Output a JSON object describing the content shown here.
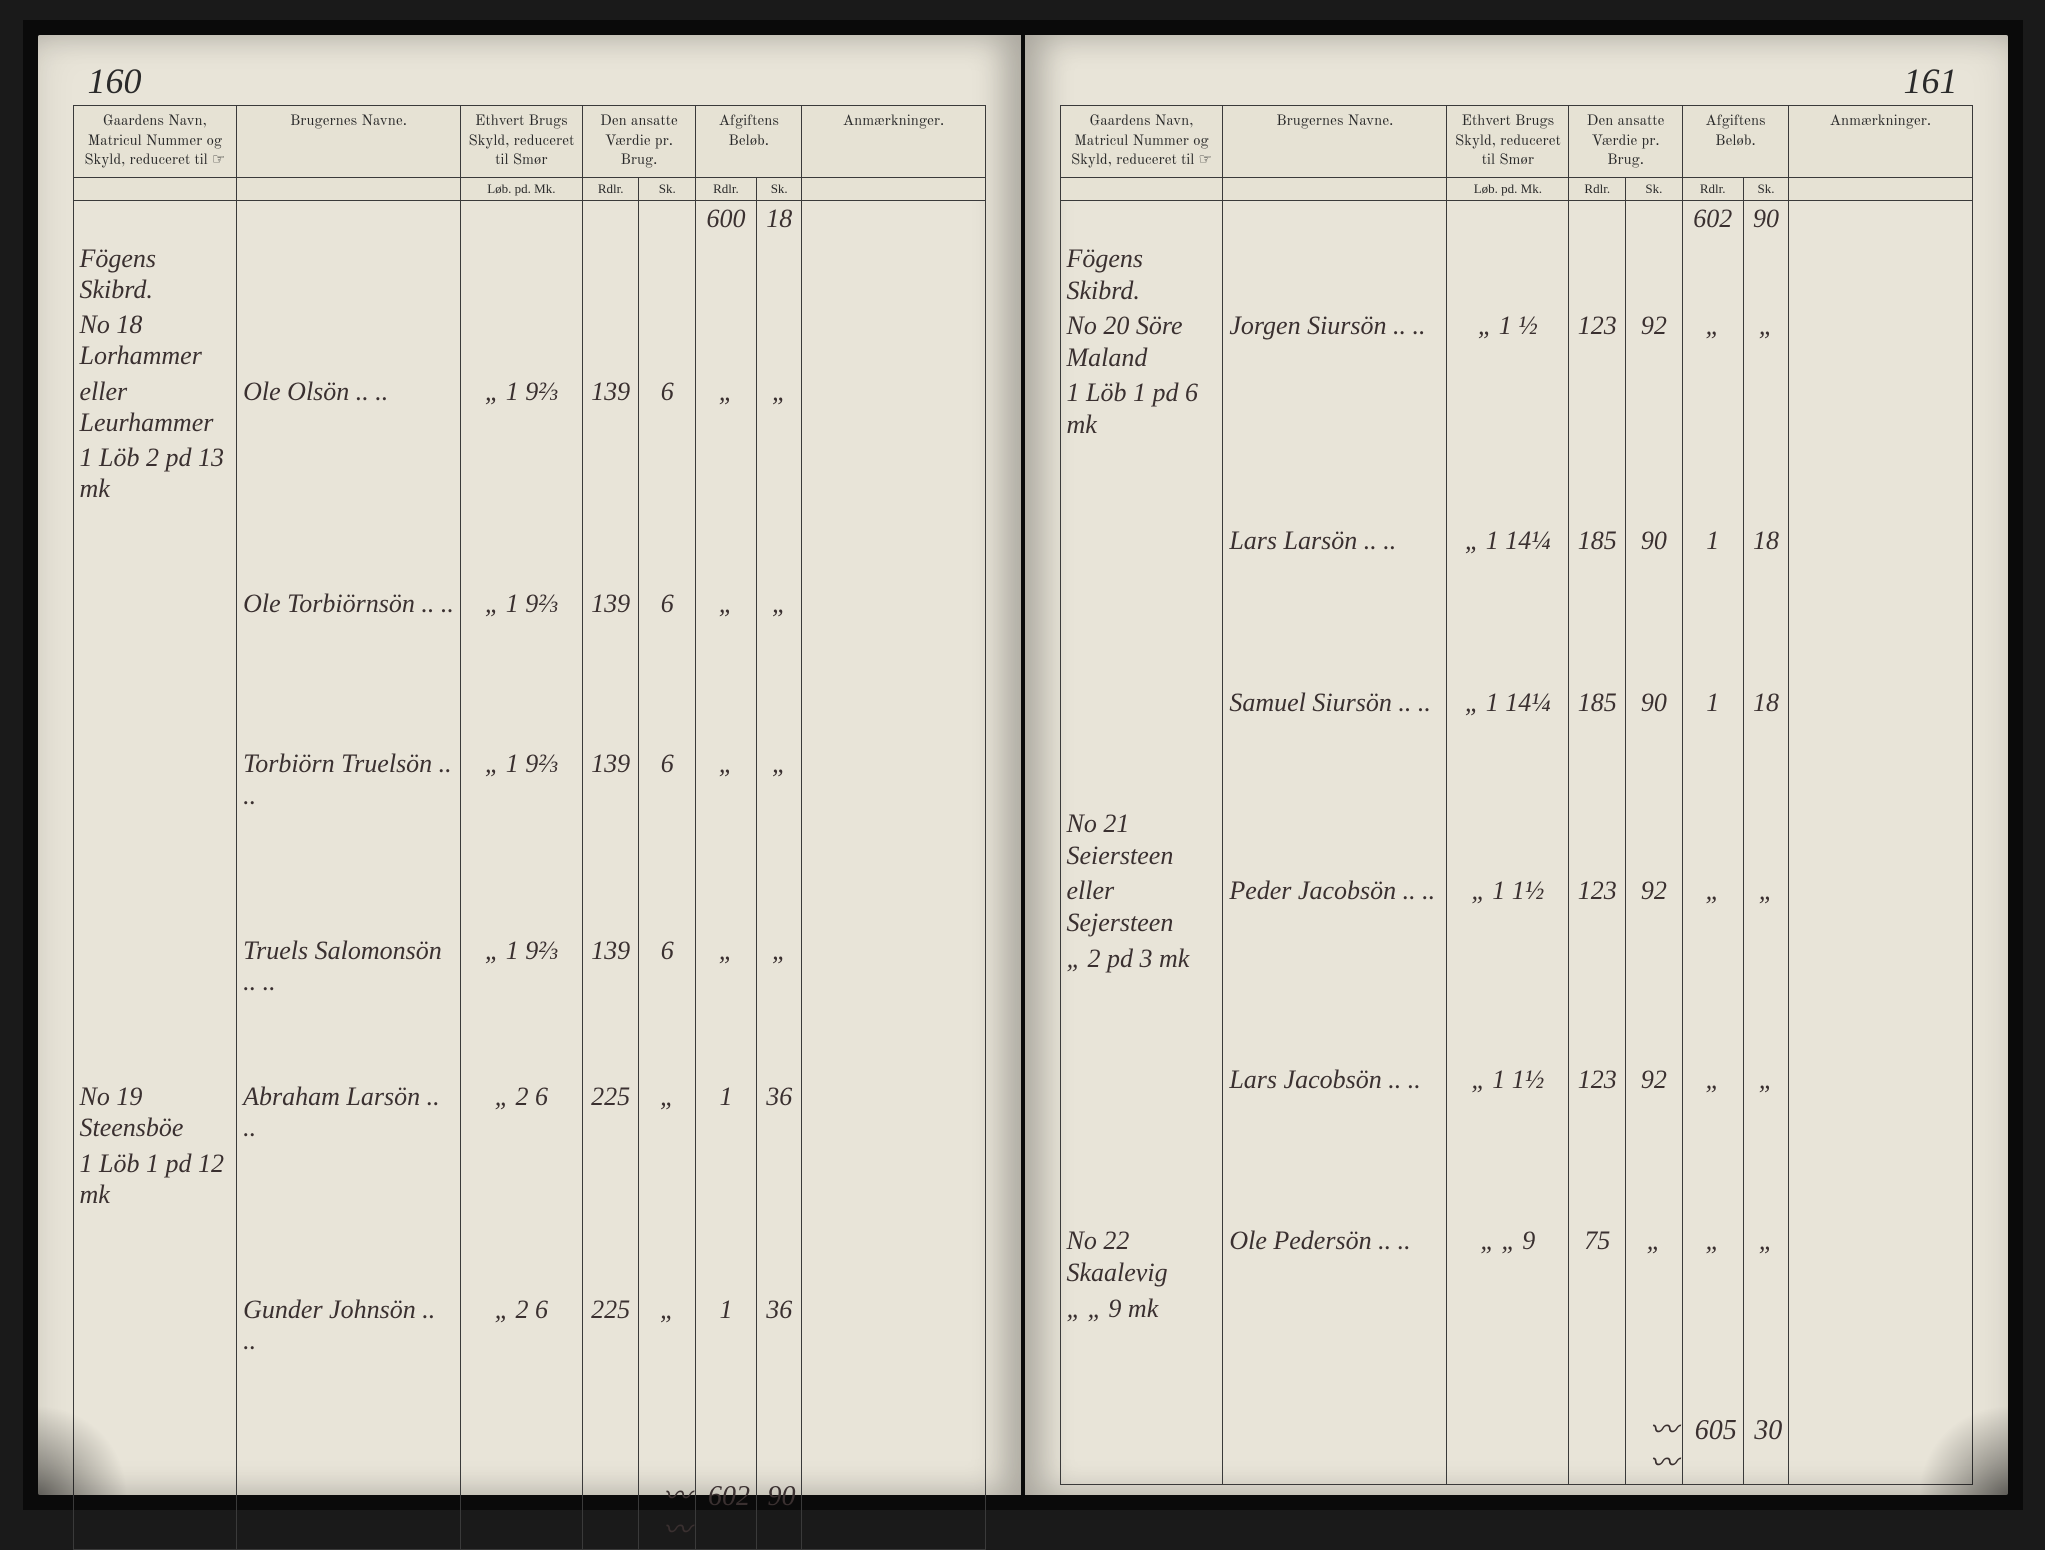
{
  "leftPage": {
    "pageNum": "160",
    "headers": {
      "gaard": "Gaardens Navn,\nMatricul Nummer og\nSkyld, reduceret til ☞",
      "bruger": "Brugernes Navne.",
      "skyld": "Ethvert Brugs\nSkyld, reduceret\ntil Smør",
      "vaerdie": "Den ansatte\nVærdie\npr. Brug.",
      "afgift": "Afgiftens\nBeløb.",
      "anm": "Anmærkninger."
    },
    "subheaders": {
      "skyld": "Løb. pd. Mk.",
      "rdlr": "Rdlr.",
      "sk": "Sk.",
      "rdlr2": "Rdlr.",
      "sk2": "Sk."
    },
    "carryForward": {
      "label": "",
      "amt1": "600",
      "amt2": "18"
    },
    "rows": [
      {
        "gaard": "Fögens Skibrd.",
        "bruger": "",
        "skyld": "",
        "v1": "",
        "v2": "",
        "a1": "",
        "a2": ""
      },
      {
        "gaard": "No 18 Lorhammer",
        "bruger": "",
        "skyld": "",
        "v1": "",
        "v2": "",
        "a1": "",
        "a2": ""
      },
      {
        "gaard": "eller Leurhammer",
        "bruger": "Ole Olsön",
        "skyld": "„  1  9⅔",
        "v1": "139",
        "v2": "6",
        "a1": "„",
        "a2": "„"
      },
      {
        "gaard": "1 Löb 2 pd 13 mk",
        "bruger": "",
        "skyld": "",
        "v1": "",
        "v2": "",
        "a1": "",
        "a2": ""
      },
      {
        "gaard": "",
        "bruger": "",
        "skyld": "",
        "v1": "",
        "v2": "",
        "a1": "",
        "a2": ""
      },
      {
        "gaard": "",
        "bruger": "",
        "skyld": "",
        "v1": "",
        "v2": "",
        "a1": "",
        "a2": ""
      },
      {
        "gaard": "",
        "bruger": "Ole Torbiörnsön",
        "skyld": "„  1  9⅔",
        "v1": "139",
        "v2": "6",
        "a1": "„",
        "a2": "„"
      },
      {
        "gaard": "",
        "bruger": "",
        "skyld": "",
        "v1": "",
        "v2": "",
        "a1": "",
        "a2": ""
      },
      {
        "gaard": "",
        "bruger": "",
        "skyld": "",
        "v1": "",
        "v2": "",
        "a1": "",
        "a2": ""
      },
      {
        "gaard": "",
        "bruger": "",
        "skyld": "",
        "v1": "",
        "v2": "",
        "a1": "",
        "a2": ""
      },
      {
        "gaard": "",
        "bruger": "Torbiörn Truelsön",
        "skyld": "„  1  9⅔",
        "v1": "139",
        "v2": "6",
        "a1": "„",
        "a2": "„"
      },
      {
        "gaard": "",
        "bruger": "",
        "skyld": "",
        "v1": "",
        "v2": "",
        "a1": "",
        "a2": ""
      },
      {
        "gaard": "",
        "bruger": "",
        "skyld": "",
        "v1": "",
        "v2": "",
        "a1": "",
        "a2": ""
      },
      {
        "gaard": "",
        "bruger": "",
        "skyld": "",
        "v1": "",
        "v2": "",
        "a1": "",
        "a2": ""
      },
      {
        "gaard": "",
        "bruger": "Truels Salomonsön",
        "skyld": "„  1  9⅔",
        "v1": "139",
        "v2": "6",
        "a1": "„",
        "a2": "„"
      },
      {
        "gaard": "",
        "bruger": "",
        "skyld": "",
        "v1": "",
        "v2": "",
        "a1": "",
        "a2": ""
      },
      {
        "gaard": "",
        "bruger": "",
        "skyld": "",
        "v1": "",
        "v2": "",
        "a1": "",
        "a2": ""
      },
      {
        "gaard": "No 19 Steensböe",
        "bruger": "Abraham Larsön",
        "skyld": "„  2  6",
        "v1": "225",
        "v2": "„",
        "a1": "1",
        "a2": "36"
      },
      {
        "gaard": "1 Löb 1 pd 12 mk",
        "bruger": "",
        "skyld": "",
        "v1": "",
        "v2": "",
        "a1": "",
        "a2": ""
      },
      {
        "gaard": "",
        "bruger": "",
        "skyld": "",
        "v1": "",
        "v2": "",
        "a1": "",
        "a2": ""
      },
      {
        "gaard": "",
        "bruger": "",
        "skyld": "",
        "v1": "",
        "v2": "",
        "a1": "",
        "a2": ""
      },
      {
        "gaard": "",
        "bruger": "Gunder Johnsön",
        "skyld": "„  2  6",
        "v1": "225",
        "v2": "„",
        "a1": "1",
        "a2": "36"
      },
      {
        "gaard": "",
        "bruger": "",
        "skyld": "",
        "v1": "",
        "v2": "",
        "a1": "",
        "a2": ""
      },
      {
        "gaard": "",
        "bruger": "",
        "skyld": "",
        "v1": "",
        "v2": "",
        "a1": "",
        "a2": ""
      },
      {
        "gaard": "",
        "bruger": "",
        "skyld": "",
        "v1": "",
        "v2": "",
        "a1": "",
        "a2": ""
      }
    ],
    "total": {
      "flourish": "〰〰",
      "amt1": "602",
      "amt2": "90"
    }
  },
  "rightPage": {
    "pageNum": "161",
    "headers": {
      "gaard": "Gaardens Navn,\nMatricul Nummer og\nSkyld, reduceret til ☞",
      "bruger": "Brugernes Navne.",
      "skyld": "Ethvert Brugs\nSkyld, reduceret\ntil Smør",
      "vaerdie": "Den ansatte\nVærdie\npr. Brug.",
      "afgift": "Afgiftens\nBeløb.",
      "anm": "Anmærkninger."
    },
    "subheaders": {
      "skyld": "Løb. pd. Mk.",
      "rdlr": "Rdlr.",
      "sk": "Sk.",
      "rdlr2": "Rdlr.",
      "sk2": "Sk."
    },
    "carryForward": {
      "label": "",
      "amt1": "602",
      "amt2": "90"
    },
    "rows": [
      {
        "gaard": "Fögens Skibrd.",
        "bruger": "",
        "skyld": "",
        "v1": "",
        "v2": "",
        "a1": "",
        "a2": ""
      },
      {
        "gaard": "No 20 Söre Maland",
        "bruger": "Jorgen Siursön",
        "skyld": "„  1  ½",
        "v1": "123",
        "v2": "92",
        "a1": "„",
        "a2": "„"
      },
      {
        "gaard": "1 Löb 1 pd 6 mk",
        "bruger": "",
        "skyld": "",
        "v1": "",
        "v2": "",
        "a1": "",
        "a2": ""
      },
      {
        "gaard": "",
        "bruger": "",
        "skyld": "",
        "v1": "",
        "v2": "",
        "a1": "",
        "a2": ""
      },
      {
        "gaard": "",
        "bruger": "",
        "skyld": "",
        "v1": "",
        "v2": "",
        "a1": "",
        "a2": ""
      },
      {
        "gaard": "",
        "bruger": "Lars Larsön",
        "skyld": "„  1  14¼",
        "v1": "185",
        "v2": "90",
        "a1": "1",
        "a2": "18"
      },
      {
        "gaard": "",
        "bruger": "",
        "skyld": "",
        "v1": "",
        "v2": "",
        "a1": "",
        "a2": ""
      },
      {
        "gaard": "",
        "bruger": "",
        "skyld": "",
        "v1": "",
        "v2": "",
        "a1": "",
        "a2": ""
      },
      {
        "gaard": "",
        "bruger": "",
        "skyld": "",
        "v1": "",
        "v2": "",
        "a1": "",
        "a2": ""
      },
      {
        "gaard": "",
        "bruger": "Samuel Siursön",
        "skyld": "„  1  14¼",
        "v1": "185",
        "v2": "90",
        "a1": "1",
        "a2": "18"
      },
      {
        "gaard": "",
        "bruger": "",
        "skyld": "",
        "v1": "",
        "v2": "",
        "a1": "",
        "a2": ""
      },
      {
        "gaard": "",
        "bruger": "",
        "skyld": "",
        "v1": "",
        "v2": "",
        "a1": "",
        "a2": ""
      },
      {
        "gaard": "No 21 Seiersteen",
        "bruger": "",
        "skyld": "",
        "v1": "",
        "v2": "",
        "a1": "",
        "a2": ""
      },
      {
        "gaard": "eller Sejersteen",
        "bruger": "Peder Jacobsön",
        "skyld": "„  1  1½",
        "v1": "123",
        "v2": "92",
        "a1": "„",
        "a2": "„"
      },
      {
        "gaard": "„  2 pd  3 mk",
        "bruger": "",
        "skyld": "",
        "v1": "",
        "v2": "",
        "a1": "",
        "a2": ""
      },
      {
        "gaard": "",
        "bruger": "",
        "skyld": "",
        "v1": "",
        "v2": "",
        "a1": "",
        "a2": ""
      },
      {
        "gaard": "",
        "bruger": "",
        "skyld": "",
        "v1": "",
        "v2": "",
        "a1": "",
        "a2": ""
      },
      {
        "gaard": "",
        "bruger": "Lars Jacobsön",
        "skyld": "„  1  1½",
        "v1": "123",
        "v2": "92",
        "a1": "„",
        "a2": "„"
      },
      {
        "gaard": "",
        "bruger": "",
        "skyld": "",
        "v1": "",
        "v2": "",
        "a1": "",
        "a2": ""
      },
      {
        "gaard": "",
        "bruger": "",
        "skyld": "",
        "v1": "",
        "v2": "",
        "a1": "",
        "a2": ""
      },
      {
        "gaard": "",
        "bruger": "",
        "skyld": "",
        "v1": "",
        "v2": "",
        "a1": "",
        "a2": ""
      },
      {
        "gaard": "No 22 Skaalevig",
        "bruger": "Ole Pedersön",
        "skyld": "„  „  9",
        "v1": "75",
        "v2": "„",
        "a1": "„",
        "a2": "„"
      },
      {
        "gaard": "„  „  9 mk",
        "bruger": "",
        "skyld": "",
        "v1": "",
        "v2": "",
        "a1": "",
        "a2": ""
      },
      {
        "gaard": "",
        "bruger": "",
        "skyld": "",
        "v1": "",
        "v2": "",
        "a1": "",
        "a2": ""
      },
      {
        "gaard": "",
        "bruger": "",
        "skyld": "",
        "v1": "",
        "v2": "",
        "a1": "",
        "a2": ""
      }
    ],
    "total": {
      "flourish": "〰〰",
      "amt1": "605",
      "amt2": "30"
    }
  }
}
